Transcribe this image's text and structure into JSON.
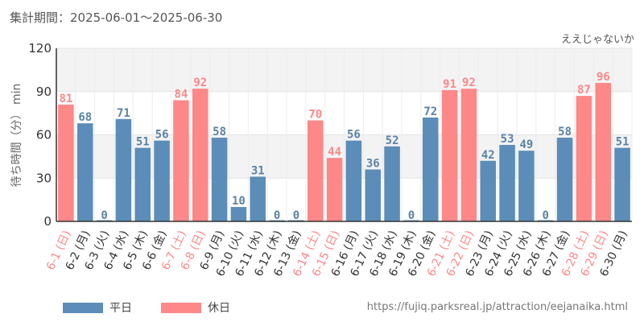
{
  "header": {
    "period": "集計期間：2025-06-01～2025-06-30",
    "attraction": "ええじゃないか"
  },
  "legend": [
    {
      "label": "平日",
      "color": "#5b8db8"
    },
    {
      "label": "休日",
      "color": "#fe8787"
    }
  ],
  "source": "https://fujiq.parksreal.jp/attraction/eejanaika.html",
  "chart_data": {
    "type": "bar",
    "ylabel": "待ち時間（分） min",
    "ylim": [
      0,
      120
    ],
    "yticks": [
      0,
      30,
      60,
      90,
      120
    ],
    "grid": true,
    "categories": [
      "6-1 (日)",
      "6-2 (月)",
      "6-3 (火)",
      "6-4 (水)",
      "6-5 (木)",
      "6-6 (金)",
      "6-7 (土)",
      "6-8 (日)",
      "6-9 (月)",
      "6-10 (火)",
      "6-11 (水)",
      "6-12 (木)",
      "6-13 (金)",
      "6-14 (土)",
      "6-15 (日)",
      "6-16 (月)",
      "6-17 (火)",
      "6-18 (水)",
      "6-19 (木)",
      "6-20 (金)",
      "6-21 (土)",
      "6-22 (日)",
      "6-23 (月)",
      "6-24 (火)",
      "6-25 (水)",
      "6-26 (木)",
      "6-27 (金)",
      "6-28 (土)",
      "6-29 (日)",
      "6-30 (月)"
    ],
    "values": [
      81,
      68,
      0,
      71,
      51,
      56,
      84,
      92,
      58,
      10,
      31,
      0,
      0,
      70,
      44,
      56,
      36,
      52,
      0,
      72,
      91,
      92,
      42,
      53,
      49,
      0,
      58,
      87,
      96,
      51
    ],
    "holiday": [
      true,
      false,
      false,
      false,
      false,
      false,
      true,
      true,
      false,
      false,
      false,
      false,
      false,
      true,
      true,
      false,
      false,
      false,
      false,
      false,
      true,
      true,
      false,
      false,
      false,
      false,
      false,
      true,
      true,
      false
    ],
    "colors": {
      "weekday": "#5b8db8",
      "holiday": "#fe8787"
    }
  }
}
